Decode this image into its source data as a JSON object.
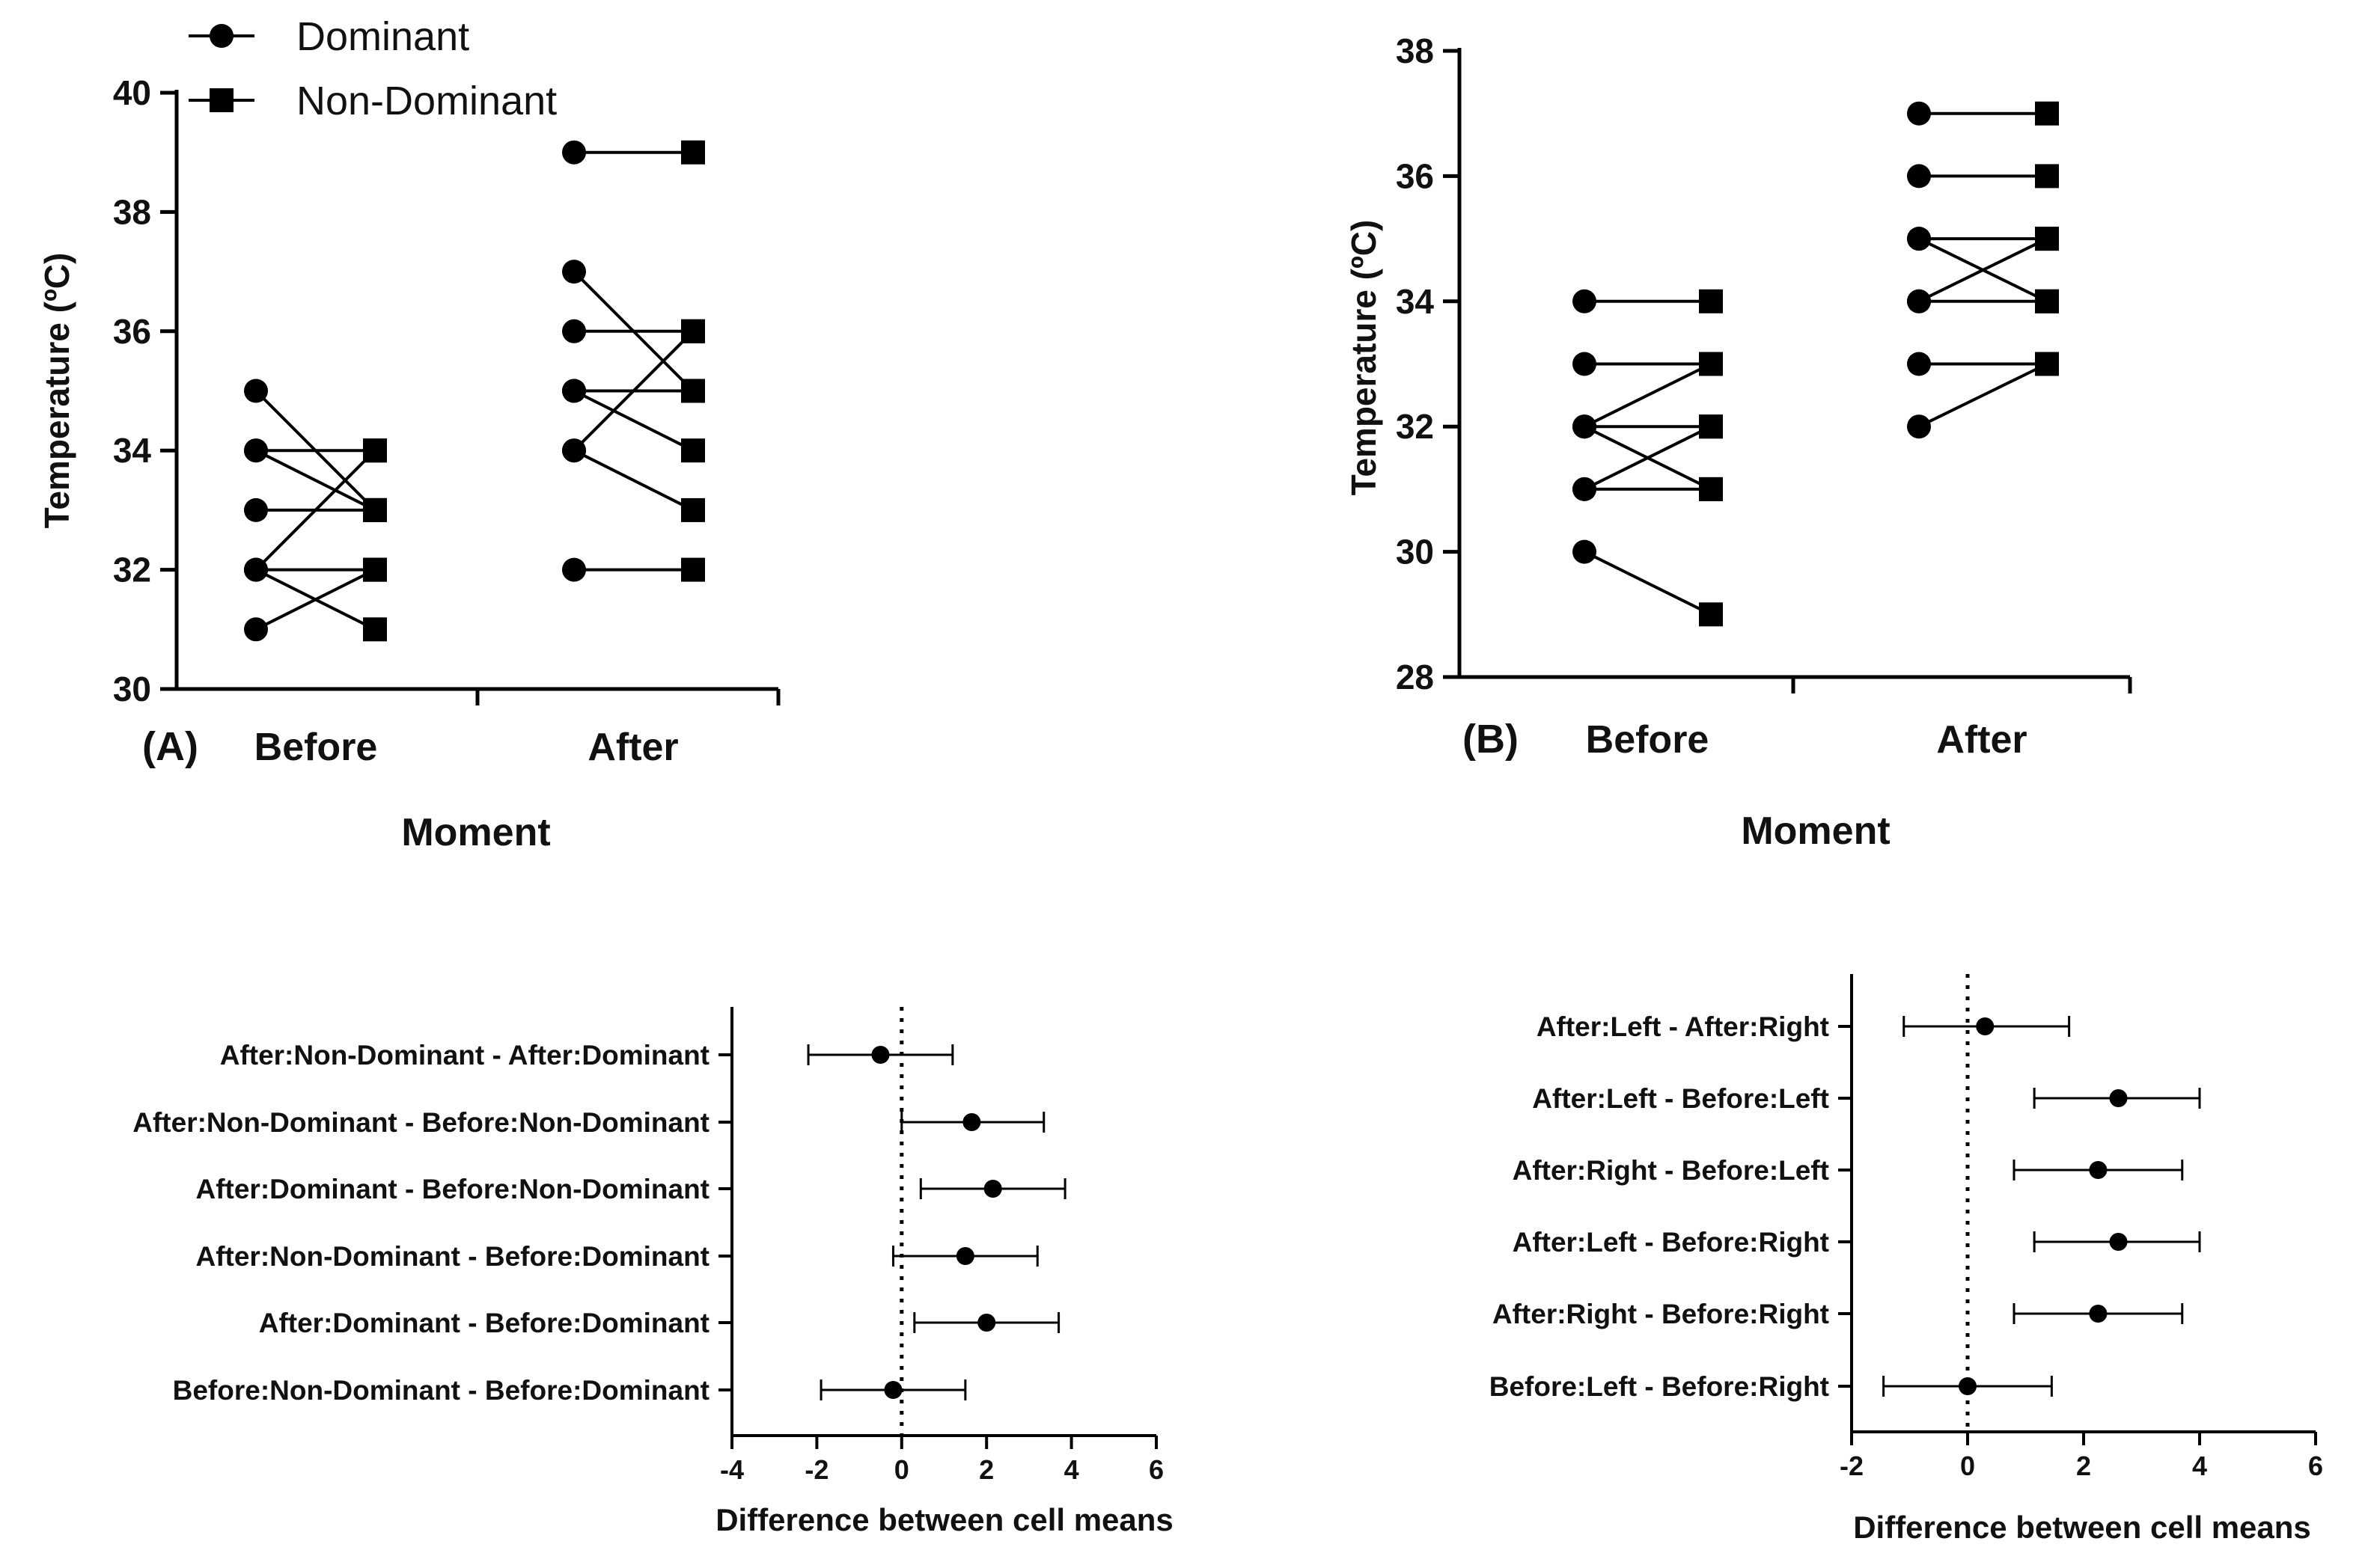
{
  "chart_data": [
    {
      "type": "line",
      "panel_label": "(A)",
      "title": "",
      "xlabel": "Moment",
      "ylabel": "Temperature (ºC)",
      "ylim": [
        30,
        40
      ],
      "yticks": [
        "30",
        "32",
        "34",
        "36",
        "38",
        "40"
      ],
      "categories": [
        "Before",
        "After"
      ],
      "legend": {
        "position": "top-left",
        "entries": [
          "Dominant",
          "Non-Dominant"
        ]
      },
      "series": [
        {
          "name": "Before",
          "pairs": [
            [
              35,
              33
            ],
            [
              34,
              34
            ],
            [
              34,
              33
            ],
            [
              33,
              33
            ],
            [
              32,
              34
            ],
            [
              32,
              32
            ],
            [
              32,
              31
            ],
            [
              31,
              32
            ]
          ]
        },
        {
          "name": "After",
          "pairs": [
            [
              39,
              39
            ],
            [
              37,
              35
            ],
            [
              36,
              36
            ],
            [
              35,
              35
            ],
            [
              35,
              34
            ],
            [
              34,
              36
            ],
            [
              34,
              33
            ],
            [
              32,
              32
            ]
          ]
        }
      ]
    },
    {
      "type": "line",
      "panel_label": "(B)",
      "title": "",
      "xlabel": "Moment",
      "ylabel": "Temperature (ºC)",
      "ylim": [
        28,
        38
      ],
      "yticks": [
        "28",
        "30",
        "32",
        "34",
        "36",
        "38"
      ],
      "categories": [
        "Before",
        "After"
      ],
      "series": [
        {
          "name": "Before",
          "pairs": [
            [
              34,
              34
            ],
            [
              33,
              33
            ],
            [
              32,
              33
            ],
            [
              32,
              32
            ],
            [
              32,
              31
            ],
            [
              31,
              32
            ],
            [
              31,
              31
            ],
            [
              30,
              29
            ]
          ]
        },
        {
          "name": "After",
          "pairs": [
            [
              37,
              37
            ],
            [
              36,
              36
            ],
            [
              35,
              35
            ],
            [
              35,
              34
            ],
            [
              34,
              35
            ],
            [
              34,
              34
            ],
            [
              33,
              33
            ],
            [
              32,
              33
            ]
          ]
        }
      ]
    },
    {
      "type": "scatter",
      "title": "",
      "xlabel": "Difference between cell means",
      "ylabel": "",
      "xlim": [
        -4,
        6
      ],
      "xticks": [
        "-4",
        "-2",
        "0",
        "2",
        "4",
        "6"
      ],
      "reference_line": 0,
      "comparisons": [
        {
          "label": "After:Non-Dominant - After:Dominant",
          "mean": -0.5,
          "lower": -2.2,
          "upper": 1.2
        },
        {
          "label": "After:Non-Dominant - Before:Non-Dominant",
          "mean": 1.65,
          "lower": 0.0,
          "upper": 3.35
        },
        {
          "label": "After:Dominant - Before:Non-Dominant",
          "mean": 2.15,
          "lower": 0.45,
          "upper": 3.85
        },
        {
          "label": "After:Non-Dominant - Before:Dominant",
          "mean": 1.5,
          "lower": -0.2,
          "upper": 3.2
        },
        {
          "label": "After:Dominant - Before:Dominant",
          "mean": 2.0,
          "lower": 0.3,
          "upper": 3.7
        },
        {
          "label": "Before:Non-Dominant - Before:Dominant",
          "mean": -0.2,
          "lower": -1.9,
          "upper": 1.5
        }
      ]
    },
    {
      "type": "scatter",
      "title": "",
      "xlabel": "Difference between cell means",
      "ylabel": "",
      "xlim": [
        -2,
        6
      ],
      "xticks": [
        "-2",
        "0",
        "2",
        "4",
        "6"
      ],
      "reference_line": 0,
      "comparisons": [
        {
          "label": "After:Left - After:Right",
          "mean": 0.3,
          "lower": -1.1,
          "upper": 1.75
        },
        {
          "label": "After:Left - Before:Left",
          "mean": 2.6,
          "lower": 1.15,
          "upper": 4.0
        },
        {
          "label": "After:Right - Before:Left",
          "mean": 2.25,
          "lower": 0.8,
          "upper": 3.7
        },
        {
          "label": "After:Left - Before:Right",
          "mean": 2.6,
          "lower": 1.15,
          "upper": 4.0
        },
        {
          "label": "After:Right - Before:Right",
          "mean": 2.25,
          "lower": 0.8,
          "upper": 3.7
        },
        {
          "label": "Before:Left - Before:Right",
          "mean": 0.0,
          "lower": -1.45,
          "upper": 1.45
        }
      ]
    }
  ]
}
